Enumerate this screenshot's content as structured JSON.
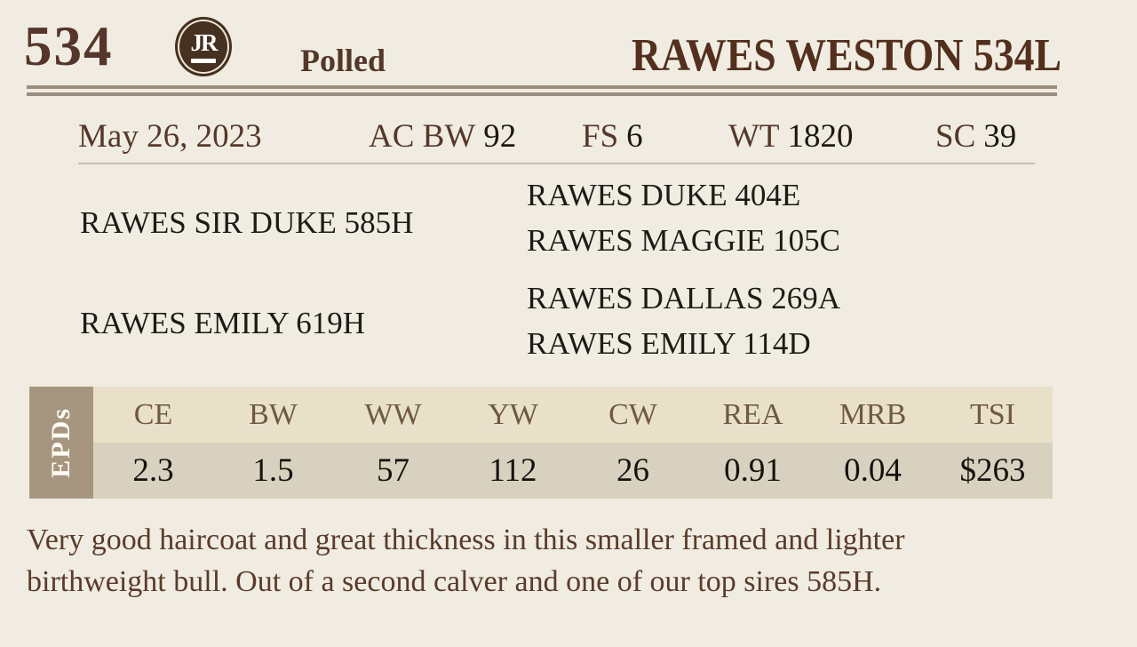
{
  "header": {
    "lot_number": "534",
    "logo_monogram": "JR",
    "horn_status": "Polled",
    "animal_name": "RAWES WESTON 534L"
  },
  "stats": {
    "birth_date": "May 26, 2023",
    "items": [
      {
        "label": "AC BW",
        "value": "92"
      },
      {
        "label": "FS",
        "value": "6"
      },
      {
        "label": "WT",
        "value": "1820"
      },
      {
        "label": "SC",
        "value": "39"
      }
    ]
  },
  "pedigree": {
    "sire": "RAWES SIR DUKE 585H",
    "dam": "RAWES EMILY 619H",
    "sire_sire": "RAWES DUKE 404E",
    "sire_dam": "RAWES MAGGIE 105C",
    "dam_sire": "RAWES DALLAS 269A",
    "dam_dam": "RAWES EMILY 114D"
  },
  "epd": {
    "section_label": "EPDs",
    "columns": [
      {
        "label": "CE",
        "value": "2.3"
      },
      {
        "label": "BW",
        "value": "1.5"
      },
      {
        "label": "WW",
        "value": "57"
      },
      {
        "label": "YW",
        "value": "112"
      },
      {
        "label": "CW",
        "value": "26"
      },
      {
        "label": "REA",
        "value": "0.91"
      },
      {
        "label": "MRB",
        "value": "0.04"
      },
      {
        "label": "TSI",
        "value": "$263"
      }
    ]
  },
  "description": {
    "lines": [
      "Very good haircoat and great thickness in this smaller framed and lighter",
      "birthweight bull. Out of a second calver and one of our top sires 585H."
    ]
  },
  "colors": {
    "background": "#F0ECE2",
    "dark_brown_text": "#56352A",
    "near_black_text": "#1E1A15",
    "double_rule": "#9A8E81",
    "thin_rule": "#C9BDAD",
    "epd_label_bg": "#A69680",
    "epd_header_bg": "#E9E0CA",
    "epd_header_text": "#6F5A41",
    "epd_value_bg": "#D9D1C0",
    "logo_bg": "#46301F"
  }
}
